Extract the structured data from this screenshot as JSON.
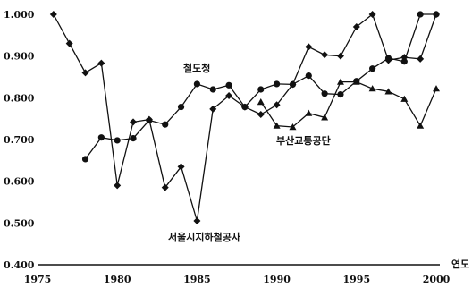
{
  "chart_data": {
    "type": "line",
    "xlabel": "연도",
    "ylabel": "",
    "xlim": [
      1975,
      2000
    ],
    "ylim": [
      0.4,
      1.0
    ],
    "grid": false,
    "x_ticks": [
      1975,
      1980,
      1985,
      1990,
      1995,
      2000
    ],
    "x_tick_labels": [
      "1975",
      "1980",
      "1985",
      "1990",
      "1995",
      "2000"
    ],
    "y_ticks": [
      0.4,
      0.5,
      0.6,
      0.7,
      0.8,
      0.9,
      1.0
    ],
    "y_tick_labels": [
      "0.400",
      "0.500",
      "0.600",
      "0.700",
      "0.800",
      "0.900",
      "1.000"
    ],
    "series": [
      {
        "name": "서울시지하철공사",
        "marker": "diamond",
        "points": [
          [
            1976,
            1.0
          ],
          [
            1977,
            0.93
          ],
          [
            1978,
            0.86
          ],
          [
            1979,
            0.883
          ],
          [
            1980,
            0.59
          ],
          [
            1981,
            0.742
          ],
          [
            1982,
            0.748
          ],
          [
            1983,
            0.585
          ],
          [
            1984,
            0.635
          ],
          [
            1985,
            0.505
          ],
          [
            1986,
            0.773
          ],
          [
            1987,
            0.805
          ],
          [
            1988,
            0.778
          ],
          [
            1989,
            0.76
          ],
          [
            1990,
            0.783
          ],
          [
            1991,
            0.832
          ],
          [
            1992,
            0.922
          ],
          [
            1993,
            0.903
          ],
          [
            1994,
            0.9
          ],
          [
            1995,
            0.97
          ],
          [
            1996,
            1.0
          ],
          [
            1997,
            0.89
          ],
          [
            1998,
            0.897
          ],
          [
            1999,
            0.893
          ],
          [
            2000,
            1.0
          ]
        ]
      },
      {
        "name": "철도청",
        "marker": "circle",
        "points": [
          [
            1978,
            0.653
          ],
          [
            1979,
            0.705
          ],
          [
            1980,
            0.698
          ],
          [
            1981,
            0.703
          ],
          [
            1982,
            0.746
          ],
          [
            1983,
            0.736
          ],
          [
            1984,
            0.778
          ],
          [
            1985,
            0.833
          ],
          [
            1986,
            0.82
          ],
          [
            1987,
            0.83
          ],
          [
            1988,
            0.778
          ],
          [
            1989,
            0.82
          ],
          [
            1990,
            0.833
          ],
          [
            1991,
            0.832
          ],
          [
            1992,
            0.853
          ],
          [
            1993,
            0.81
          ],
          [
            1994,
            0.808
          ],
          [
            1995,
            0.84
          ],
          [
            1996,
            0.87
          ],
          [
            1997,
            0.895
          ],
          [
            1998,
            0.887
          ],
          [
            1999,
            1.0
          ],
          [
            2000,
            1.0
          ]
        ]
      },
      {
        "name": "부산교통공단",
        "marker": "triangle",
        "points": [
          [
            1989,
            0.79
          ],
          [
            1990,
            0.733
          ],
          [
            1991,
            0.73
          ],
          [
            1992,
            0.763
          ],
          [
            1993,
            0.753
          ],
          [
            1994,
            0.838
          ],
          [
            1995,
            0.838
          ],
          [
            1996,
            0.822
          ],
          [
            1997,
            0.815
          ],
          [
            1998,
            0.797
          ],
          [
            1999,
            0.733
          ],
          [
            2000,
            0.822
          ]
        ]
      }
    ],
    "annotations": [
      {
        "text": "철도청",
        "series": "철도청"
      },
      {
        "text": "부산교통공단",
        "series": "부산교통공단"
      },
      {
        "text": "서울시지하철공사",
        "series": "서울시지하철공사"
      }
    ]
  }
}
